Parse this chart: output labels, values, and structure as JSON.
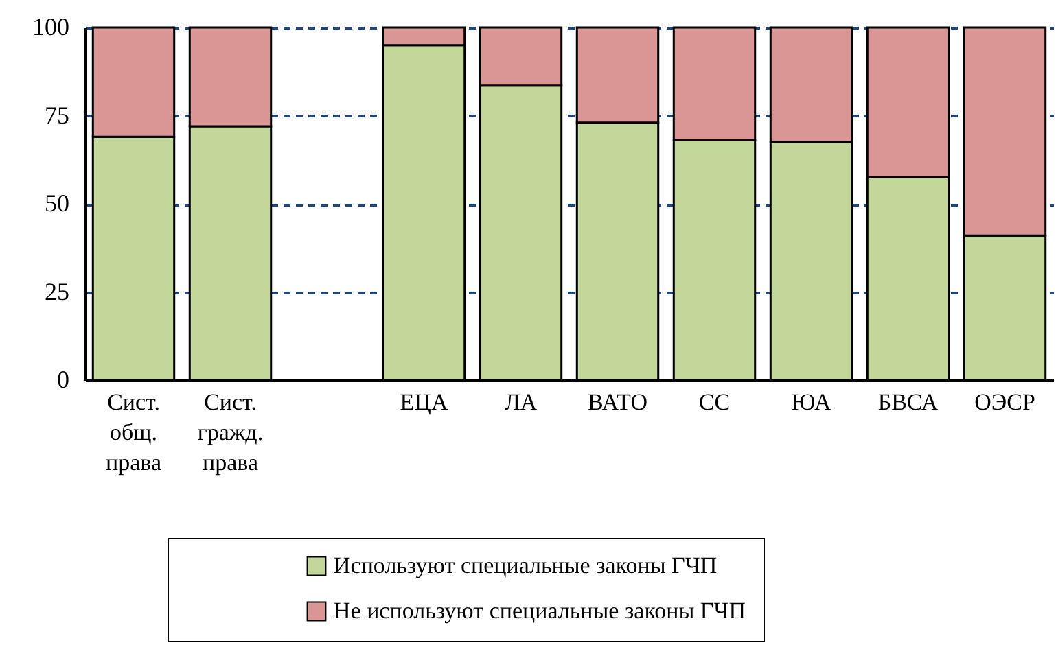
{
  "chart_data": {
    "type": "bar",
    "stacked": true,
    "categories": [
      "Сист. общ. права",
      "Сист. гражд. права",
      null,
      "ЕЦА",
      "ЛА",
      "ВАТО",
      "СС",
      "ЮА",
      "БВСА",
      "ОЭСР"
    ],
    "series": [
      {
        "name": "Используют специальные законы ГЧП",
        "color": "#c4d79b",
        "values": [
          69,
          72,
          null,
          95,
          83.5,
          73,
          68,
          67.5,
          57.5,
          41
        ]
      },
      {
        "name": "Не используют специальные законы ГЧП",
        "color": "#da9694",
        "values": [
          31,
          28,
          null,
          5,
          16.5,
          27,
          32,
          32.5,
          42.5,
          59
        ]
      }
    ],
    "ylim": [
      0,
      100
    ],
    "yticks": [
      0,
      25,
      50,
      75,
      100
    ],
    "grid": "y",
    "legend": "bottom"
  }
}
